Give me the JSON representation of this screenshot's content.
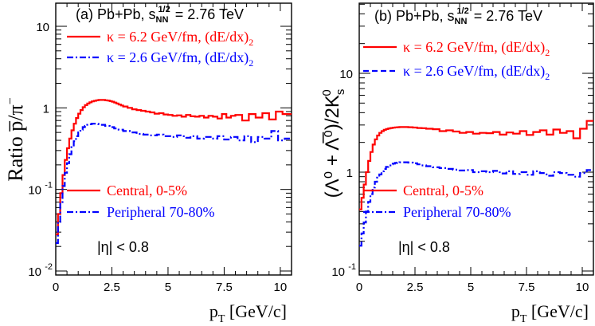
{
  "colors": {
    "red": "#ff0000",
    "blue": "#0000ff",
    "axis": "#000000"
  },
  "chart_data": [
    {
      "type": "line",
      "panel_label": "(a) Pb+Pb, s",
      "energy_sub": "NN",
      "energy_sup": "1/2",
      "energy_value": "= 2.76 TeV",
      "ylabel_a": "Ratio",
      "ylabel_b": "p̅/π",
      "ylabel_b_sup": "−",
      "xlabel": "p",
      "xlabel_sub": "T",
      "xlabel_unit": "[GeV/c]",
      "xlim": [
        0,
        10.5
      ],
      "ylim": [
        0.01,
        30
      ],
      "ylog": true,
      "yticks": [
        {
          "base": "10",
          "exp": "-2",
          "value": 0.01
        },
        {
          "base": "10",
          "exp": "-1",
          "value": 0.1
        },
        {
          "base": "1",
          "exp": "",
          "value": 1
        },
        {
          "base": "10",
          "exp": "",
          "value": 10
        }
      ],
      "xticks": [
        "0",
        "2.5",
        "5",
        "7.5",
        "10"
      ],
      "legend_top": [
        {
          "text": "κ = 6.2 GeV/fm, (dE/dx)",
          "sub": "2",
          "color": "#ff0000",
          "dash": "solid"
        },
        {
          "text": "κ = 2.6 GeV/fm, (dE/dx)",
          "sub": "2",
          "color": "#0000ff",
          "dash": "dashdot"
        }
      ],
      "legend_bottom": [
        {
          "text": "Central, 0-5%",
          "color": "#ff0000",
          "dash": "solid"
        },
        {
          "text": "Peripheral 70-80%",
          "color": "#0000ff",
          "dash": "dashdot"
        }
      ],
      "eta_cut": "|η| < 0.8",
      "series": [
        {
          "color": "#ff0000",
          "dash": "solid",
          "x": [
            0,
            0.1,
            0.2,
            0.3,
            0.4,
            0.5,
            0.6,
            0.7,
            0.8,
            0.9,
            1.0,
            1.1,
            1.2,
            1.3,
            1.4,
            1.5,
            1.6,
            1.7,
            1.8,
            1.9,
            2.0,
            2.1,
            2.2,
            2.3,
            2.4,
            2.5,
            2.6,
            2.7,
            2.8,
            2.9,
            3.0,
            3.2,
            3.4,
            3.6,
            3.8,
            4.0,
            4.2,
            4.4,
            4.6,
            4.8,
            5.0,
            5.2,
            5.4,
            5.6,
            5.8,
            6.0,
            6.2,
            6.4,
            6.6,
            6.8,
            7.0,
            7.2,
            7.4,
            7.6,
            7.8,
            8.0,
            8.3,
            8.6,
            8.9,
            9.2,
            9.5,
            9.8,
            10.1,
            10.5
          ],
          "y": [
            0.028,
            0.05,
            0.09,
            0.15,
            0.23,
            0.32,
            0.42,
            0.53,
            0.64,
            0.75,
            0.85,
            0.94,
            1.02,
            1.08,
            1.13,
            1.17,
            1.2,
            1.22,
            1.24,
            1.25,
            1.25,
            1.25,
            1.24,
            1.23,
            1.21,
            1.19,
            1.16,
            1.13,
            1.1,
            1.07,
            1.04,
            1.0,
            0.96,
            0.94,
            0.92,
            0.9,
            0.88,
            0.85,
            0.86,
            0.83,
            0.82,
            0.8,
            0.81,
            0.78,
            0.82,
            0.79,
            0.78,
            0.8,
            0.76,
            0.8,
            0.78,
            0.74,
            0.84,
            0.76,
            0.8,
            0.82,
            0.7,
            0.84,
            0.76,
            0.86,
            0.72,
            0.9,
            0.84,
            0.95
          ]
        },
        {
          "color": "#0000ff",
          "dash": "dashdot",
          "x": [
            0,
            0.1,
            0.2,
            0.3,
            0.4,
            0.5,
            0.6,
            0.7,
            0.8,
            0.9,
            1.0,
            1.1,
            1.2,
            1.3,
            1.4,
            1.5,
            1.6,
            1.7,
            1.8,
            1.9,
            2.0,
            2.2,
            2.4,
            2.6,
            2.8,
            3.0,
            3.3,
            3.6,
            3.9,
            4.2,
            4.5,
            4.8,
            5.1,
            5.4,
            5.7,
            6.0,
            6.3,
            6.6,
            6.9,
            7.2,
            7.5,
            7.8,
            8.1,
            8.4,
            8.7,
            9.0,
            9.3,
            9.6,
            9.9,
            10.2,
            10.5
          ],
          "y": [
            0.022,
            0.04,
            0.07,
            0.11,
            0.16,
            0.21,
            0.27,
            0.33,
            0.39,
            0.45,
            0.5,
            0.54,
            0.58,
            0.6,
            0.62,
            0.63,
            0.64,
            0.64,
            0.64,
            0.63,
            0.62,
            0.6,
            0.58,
            0.56,
            0.54,
            0.52,
            0.5,
            0.48,
            0.47,
            0.46,
            0.47,
            0.45,
            0.44,
            0.46,
            0.43,
            0.45,
            0.42,
            0.44,
            0.42,
            0.45,
            0.41,
            0.44,
            0.4,
            0.45,
            0.38,
            0.44,
            0.42,
            0.52,
            0.4,
            0.42,
            0.42
          ]
        }
      ]
    },
    {
      "type": "line",
      "panel_label": "(b) Pb+Pb, s",
      "energy_sub": "NN",
      "energy_sup": "1/2",
      "energy_value": "= 2.76 TeV",
      "ylabel": "(Λ⁰ + Λ̅⁰)/2K",
      "ylabel_sub": "s",
      "ylabel_sup": "0",
      "xlabel": "p",
      "xlabel_sub": "T",
      "xlabel_unit": "[GeV/c]",
      "xlim": [
        0,
        10.5
      ],
      "ylim": [
        0.1,
        30
      ],
      "ylog": true,
      "yticks": [
        {
          "base": "10",
          "exp": "-1",
          "value": 0.1
        },
        {
          "base": "1",
          "exp": "",
          "value": 1
        },
        {
          "base": "10",
          "exp": "",
          "value": 10
        }
      ],
      "xticks": [
        "0",
        "2.5",
        "5",
        "7.5",
        "10"
      ],
      "legend_top": [
        {
          "text": "κ = 6.2 GeV/fm, (dE/dx)",
          "sub": "2",
          "color": "#ff0000",
          "dash": "solid"
        },
        {
          "text": "κ = 2.6 GeV/fm, (dE/dx)",
          "sub": "2",
          "color": "#0000ff",
          "dash": "dashed"
        }
      ],
      "legend_bottom": [
        {
          "text": "Central, 0-5%",
          "color": "#ff0000",
          "dash": "solid"
        },
        {
          "text": "Peripheral 70-80%",
          "color": "#0000ff",
          "dash": "dashdot"
        }
      ],
      "eta_cut": "|η| < 0.8",
      "series": [
        {
          "color": "#ff0000",
          "dash": "solid",
          "x": [
            0,
            0.1,
            0.2,
            0.3,
            0.4,
            0.5,
            0.6,
            0.7,
            0.8,
            0.9,
            1.0,
            1.1,
            1.2,
            1.3,
            1.4,
            1.5,
            1.6,
            1.7,
            1.8,
            1.9,
            2.0,
            2.2,
            2.4,
            2.6,
            2.8,
            3.0,
            3.3,
            3.6,
            3.9,
            4.2,
            4.5,
            4.8,
            5.1,
            5.4,
            5.7,
            6.0,
            6.3,
            6.6,
            6.9,
            7.2,
            7.5,
            7.8,
            8.1,
            8.4,
            8.7,
            9.0,
            9.3,
            9.6,
            9.9,
            10.2,
            10.5
          ],
          "y": [
            0.42,
            0.55,
            0.75,
            1.0,
            1.3,
            1.6,
            1.9,
            2.15,
            2.35,
            2.5,
            2.6,
            2.68,
            2.73,
            2.77,
            2.8,
            2.82,
            2.84,
            2.85,
            2.86,
            2.86,
            2.86,
            2.85,
            2.83,
            2.8,
            2.78,
            2.75,
            2.72,
            2.6,
            2.65,
            2.58,
            2.5,
            2.55,
            2.45,
            2.5,
            2.48,
            2.55,
            2.4,
            2.52,
            2.45,
            2.6,
            2.38,
            2.55,
            2.65,
            2.4,
            2.7,
            2.5,
            2.6,
            2.2,
            2.75,
            3.3,
            3.3
          ]
        },
        {
          "color": "#0000ff",
          "dash": "dashdot",
          "x": [
            0,
            0.1,
            0.2,
            0.3,
            0.4,
            0.5,
            0.6,
            0.7,
            0.8,
            0.9,
            1.0,
            1.1,
            1.2,
            1.3,
            1.4,
            1.5,
            1.6,
            1.7,
            1.8,
            1.9,
            2.0,
            2.2,
            2.4,
            2.6,
            2.8,
            3.0,
            3.3,
            3.6,
            3.9,
            4.2,
            4.5,
            4.8,
            5.1,
            5.4,
            5.7,
            6.0,
            6.3,
            6.6,
            6.9,
            7.2,
            7.5,
            7.8,
            8.1,
            8.4,
            8.7,
            9.0,
            9.3,
            9.6,
            9.9,
            10.2,
            10.5
          ],
          "y": [
            0.18,
            0.24,
            0.31,
            0.4,
            0.5,
            0.6,
            0.7,
            0.8,
            0.88,
            0.95,
            1.02,
            1.08,
            1.13,
            1.17,
            1.2,
            1.22,
            1.24,
            1.25,
            1.26,
            1.26,
            1.26,
            1.25,
            1.23,
            1.2,
            1.17,
            1.15,
            1.12,
            1.1,
            1.08,
            1.06,
            1.04,
            1.05,
            1.0,
            1.02,
            1.0,
            1.03,
            0.97,
            1.02,
            0.96,
            1.0,
            0.94,
            1.02,
            0.98,
            0.92,
            1.0,
            0.98,
            0.94,
            0.9,
            0.98,
            1.05,
            1.05
          ]
        }
      ]
    }
  ]
}
